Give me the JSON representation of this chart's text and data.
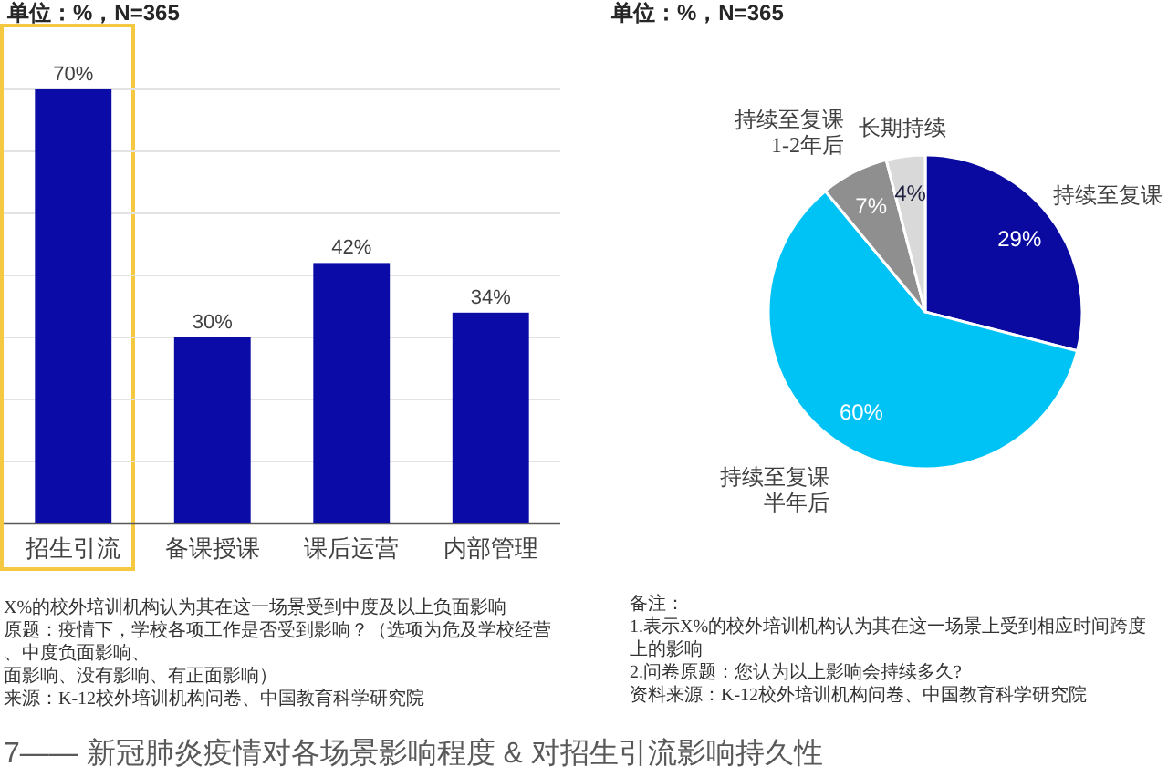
{
  "chart_data": [
    {
      "type": "bar",
      "title": "7—— 新冠肺炎疫情对各场景影响程度 & 对招生引流影响持久性",
      "subtitle": "单位：%，N=365",
      "categories": [
        "招生引流",
        "备课授课",
        "课后运营",
        "内部管理"
      ],
      "values": [
        70,
        30,
        42,
        34
      ],
      "color": "#0b0ba8",
      "value_labels": [
        "70%",
        "30%",
        "42%",
        "34%"
      ],
      "yticks": [
        {
          "value": 10,
          "label": null
        },
        {
          "value": 20,
          "label": null
        },
        {
          "value": 30,
          "label": null
        },
        {
          "value": 40,
          "label": null
        },
        {
          "value": 50,
          "label": null
        },
        {
          "value": 60,
          "label": null
        },
        {
          "value": 70,
          "label": null
        }
      ],
      "grid": "y",
      "tick_labels": "x",
      "annotations": [
        "X%的校外培训机构认为其在这一场景受到中度及以上负面影响",
        "原题：疫情下，学校各项工作是否受到影响？（选项为危及学校经营、中度负面影响、",
        "面影响、没有影响、有正面影响）",
        "来源：K-12校外培训机构问卷、中国教育科学研究院"
      ]
    },
    {
      "type": "pie",
      "subtitle": "单位：%，N=365",
      "categories": [
        "持续至复课",
        "持续至复课半年后",
        "持续至复课1-2年后",
        "长期持续"
      ],
      "values": [
        29,
        60,
        7,
        4
      ],
      "colors": [
        "#0a0aa0",
        "#00c3f5",
        "#8f8f8f",
        "#d9d9d9"
      ],
      "value_labels": [
        "29%",
        "60%",
        "7%",
        "4%"
      ],
      "annotations": [
        "备注：",
        "1.表示X%的校外培训机构认为其在这一场景上受到相应时间跨度上的影响",
        "2.问卷原题：您认为以上影响会持续多久?",
        "资料来源：K-12校外培训机构问卷、中国教育科学研究院"
      ]
    }
  ]
}
